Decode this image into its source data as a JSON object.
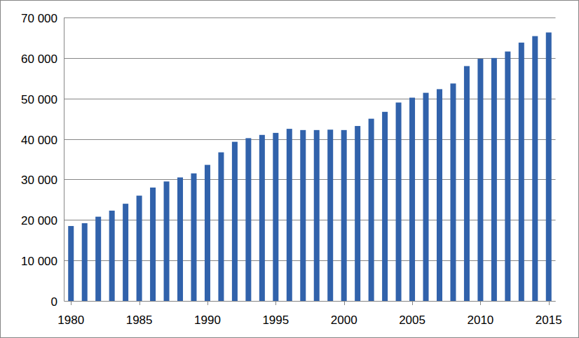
{
  "chart_data": {
    "type": "bar",
    "categories": [
      "1980",
      null,
      null,
      null,
      null,
      "1985",
      null,
      null,
      null,
      null,
      "1990",
      null,
      null,
      null,
      null,
      "1995",
      null,
      null,
      null,
      null,
      "2000",
      null,
      null,
      null,
      null,
      "2005",
      null,
      null,
      null,
      null,
      "2010",
      null,
      null,
      null,
      null,
      "2015"
    ],
    "values": [
      18500,
      19200,
      20800,
      22300,
      24000,
      26000,
      28000,
      29500,
      30500,
      31500,
      33600,
      36700,
      39300,
      40200,
      41000,
      41500,
      42500,
      42200,
      42200,
      42300,
      42200,
      43200,
      45000,
      46700,
      49000,
      50200,
      51400,
      52300,
      53700,
      58000,
      59800,
      60000,
      61600,
      63800,
      65400,
      66300
    ],
    "color": "#3162ab",
    "ylim": [
      0,
      70000
    ],
    "yticks": [
      0,
      {
        "value": 10000,
        "label": "10 000"
      },
      {
        "value": 20000,
        "label": "20 000"
      },
      {
        "value": 30000,
        "label": "30 000"
      },
      {
        "value": 40000,
        "label": "40 000"
      },
      {
        "value": 50000,
        "label": "50 000"
      },
      {
        "value": 60000,
        "label": "60 000"
      },
      {
        "value": 70000,
        "label": "70 000"
      }
    ],
    "grid": true
  }
}
